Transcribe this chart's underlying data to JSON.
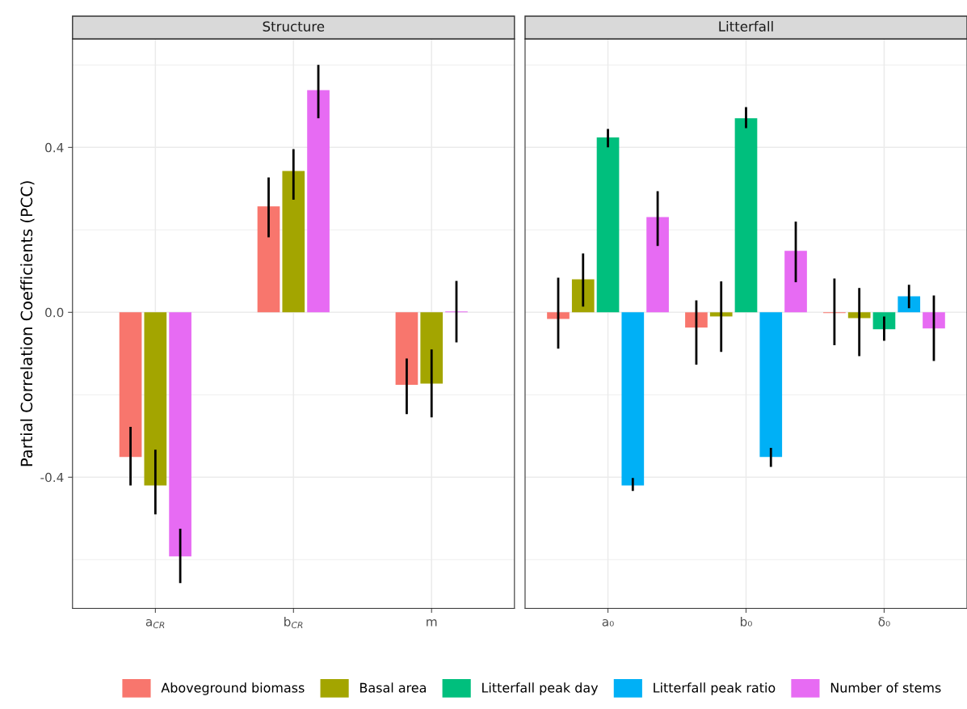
{
  "chart_data": [
    {
      "type": "bar",
      "title": "Structure",
      "ylabel": "Partial Correlation Coefficients (PCC)",
      "categories": [
        "a$_{CR}$",
        "b$_{CR}$",
        "m"
      ],
      "ylim": [
        -0.718,
        0.663
      ],
      "yticks": [
        {
          "value": -0.4,
          "label": "-0.4"
        },
        {
          "value": 0,
          "label": "0.0"
        },
        {
          "value": 0.4,
          "label": "0.4"
        }
      ],
      "grid": true,
      "legend": "bottom",
      "series": [
        {
          "name": "Aboveground biomass",
          "color": "#F8766D",
          "values": [
            -0.351,
            0.257,
            -0.176
          ],
          "errors": [
            [
              -0.42,
              -0.278
            ],
            [
              0.182,
              0.327
            ],
            [
              -0.247,
              -0.112
            ]
          ]
        },
        {
          "name": "Basal area",
          "color": "#A3A500",
          "values": [
            -0.42,
            0.343,
            -0.173
          ],
          "errors": [
            [
              -0.49,
              -0.333
            ],
            [
              0.273,
              0.396
            ],
            [
              -0.255,
              -0.09
            ]
          ]
        },
        {
          "name": "Number of stems",
          "color": "#E76BF3",
          "values": [
            -0.592,
            0.539,
            0.002
          ],
          "errors": [
            [
              -0.657,
              -0.525
            ],
            [
              0.471,
              0.6
            ],
            [
              -0.073,
              0.076
            ]
          ]
        }
      ]
    },
    {
      "type": "bar",
      "title": "Litterfall",
      "categories": [
        "a₀",
        "b₀",
        "δ₀"
      ],
      "ylim": [
        -0.718,
        0.663
      ],
      "yticks": [
        -0.4,
        0,
        0.4
      ],
      "grid": true,
      "tick_labels": "x",
      "legend": "bottom",
      "series": [
        {
          "name": "Aboveground biomass",
          "color": "#F8766D",
          "values": [
            -0.016,
            -0.037,
            -0.002
          ],
          "errors": [
            [
              -0.088,
              0.084
            ],
            [
              -0.127,
              0.029
            ],
            [
              -0.08,
              0.082
            ]
          ]
        },
        {
          "name": "Basal area",
          "color": "#A3A500",
          "values": [
            0.08,
            -0.01,
            -0.014
          ],
          "errors": [
            [
              0.014,
              0.143
            ],
            [
              -0.096,
              0.075
            ],
            [
              -0.106,
              0.059
            ]
          ]
        },
        {
          "name": "Litterfall peak day",
          "color": "#00BF7D",
          "values": [
            0.424,
            0.471,
            -0.041
          ],
          "errors": [
            [
              0.4,
              0.445
            ],
            [
              0.447,
              0.498
            ],
            [
              -0.069,
              -0.01
            ]
          ]
        },
        {
          "name": "Litterfall peak ratio",
          "color": "#00B0F6",
          "values": [
            -0.42,
            -0.351,
            0.039
          ],
          "errors": [
            [
              -0.433,
              -0.402
            ],
            [
              -0.375,
              -0.329
            ],
            [
              0.01,
              0.067
            ]
          ]
        },
        {
          "name": "Number of stems",
          "color": "#E76BF3",
          "values": [
            0.231,
            0.149,
            -0.039
          ],
          "errors": [
            [
              0.161,
              0.294
            ],
            [
              0.073,
              0.22
            ],
            [
              -0.118,
              0.041
            ]
          ]
        }
      ]
    }
  ]
}
